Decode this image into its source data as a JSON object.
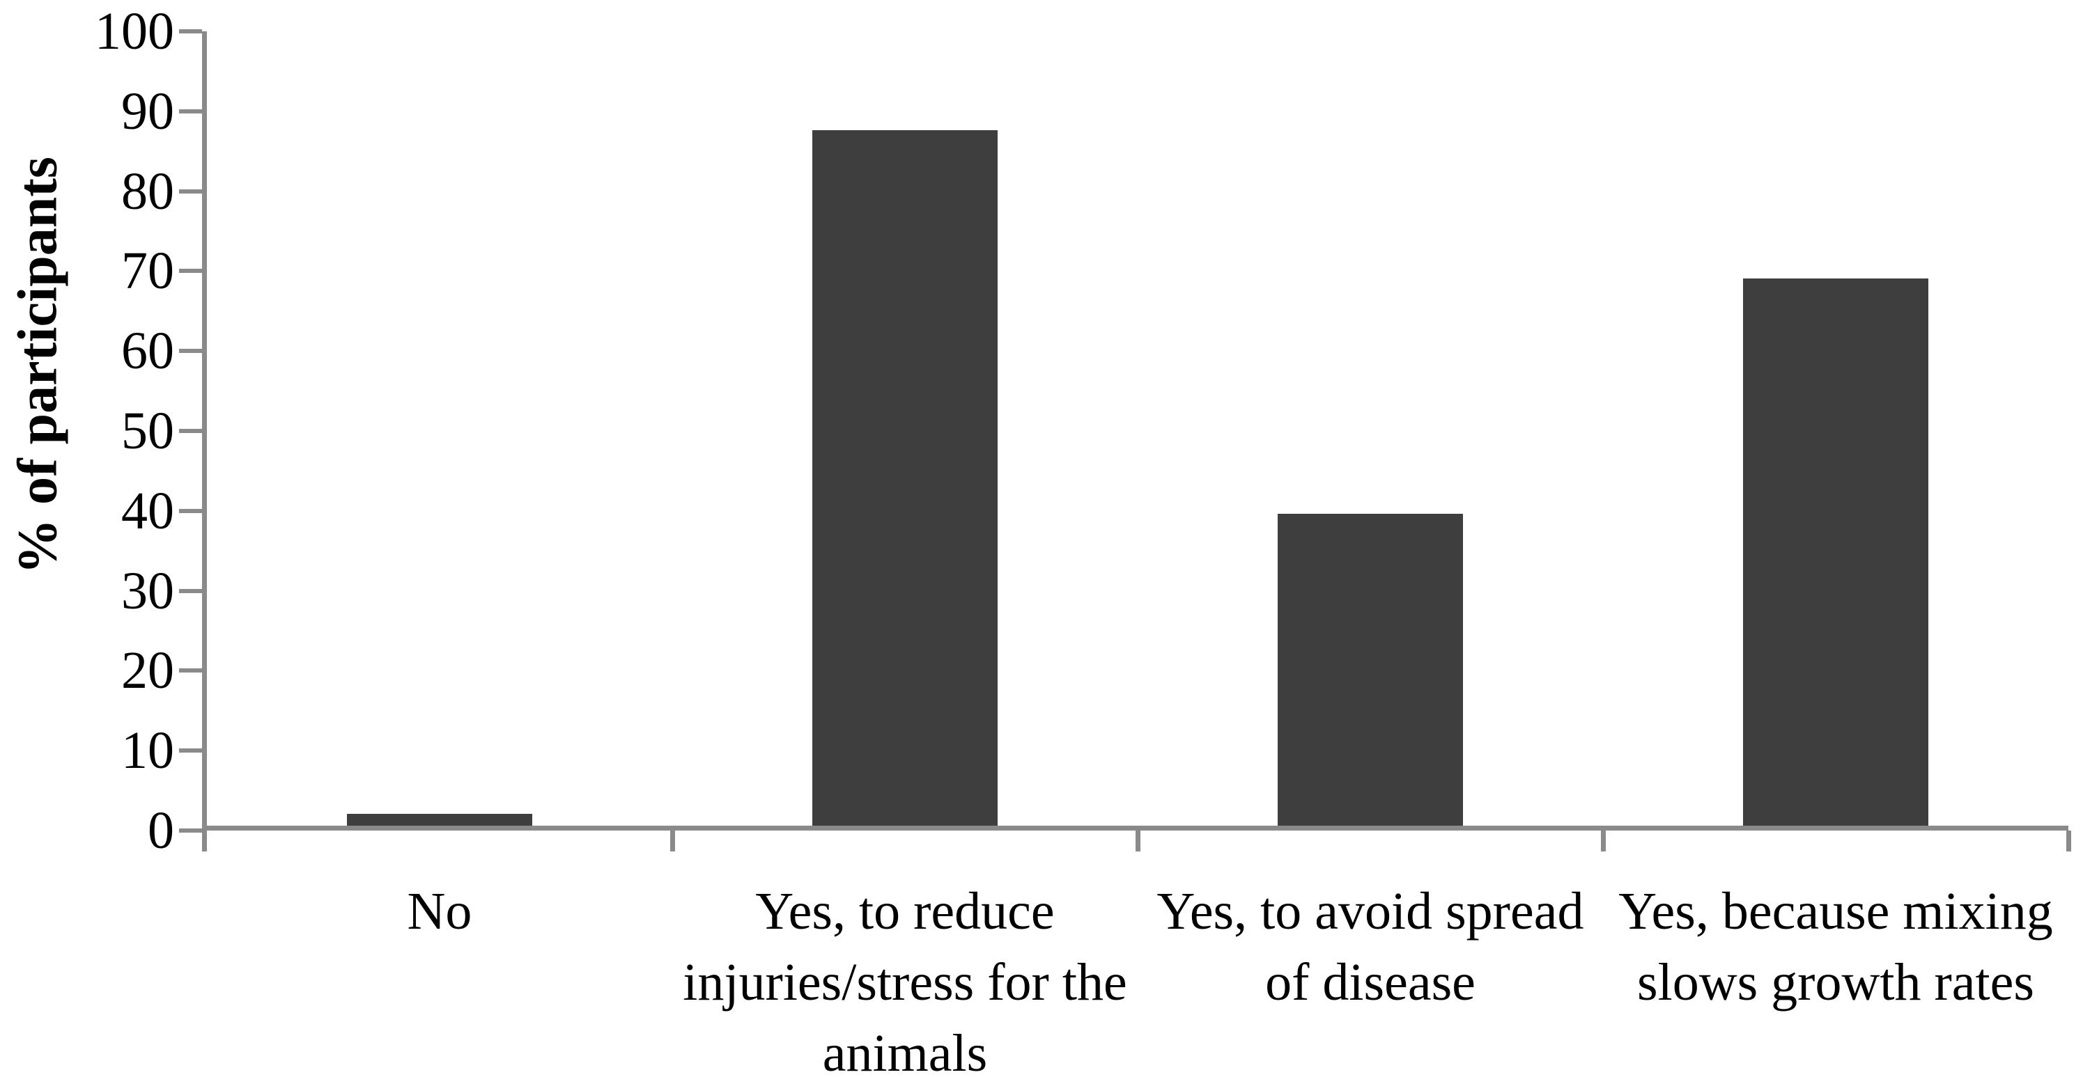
{
  "chart_data": {
    "type": "bar",
    "title": "",
    "ylabel": "% of participants",
    "xlabel": "",
    "categories": [
      "No",
      "Yes, to reduce injuries/stress for the animals",
      "Yes, to avoid spread of disease",
      "Yes, because mixing slows growth rates"
    ],
    "category_lines": [
      [
        "No"
      ],
      [
        "Yes, to reduce",
        "injuries/stress for the",
        "animals"
      ],
      [
        "Yes, to avoid spread",
        "of disease"
      ],
      [
        "Yes, because mixing",
        "slows growth rates"
      ]
    ],
    "values": [
      1.5,
      87,
      39,
      68.5
    ],
    "ylim": [
      0,
      100
    ],
    "yticks": [
      0,
      10,
      20,
      30,
      40,
      50,
      60,
      70,
      80,
      90,
      100
    ],
    "grid": false,
    "legend_position": "none",
    "colors": {
      "bar": "#3e3e3e",
      "axis": "#8a8a8a",
      "text": "#000000"
    }
  }
}
